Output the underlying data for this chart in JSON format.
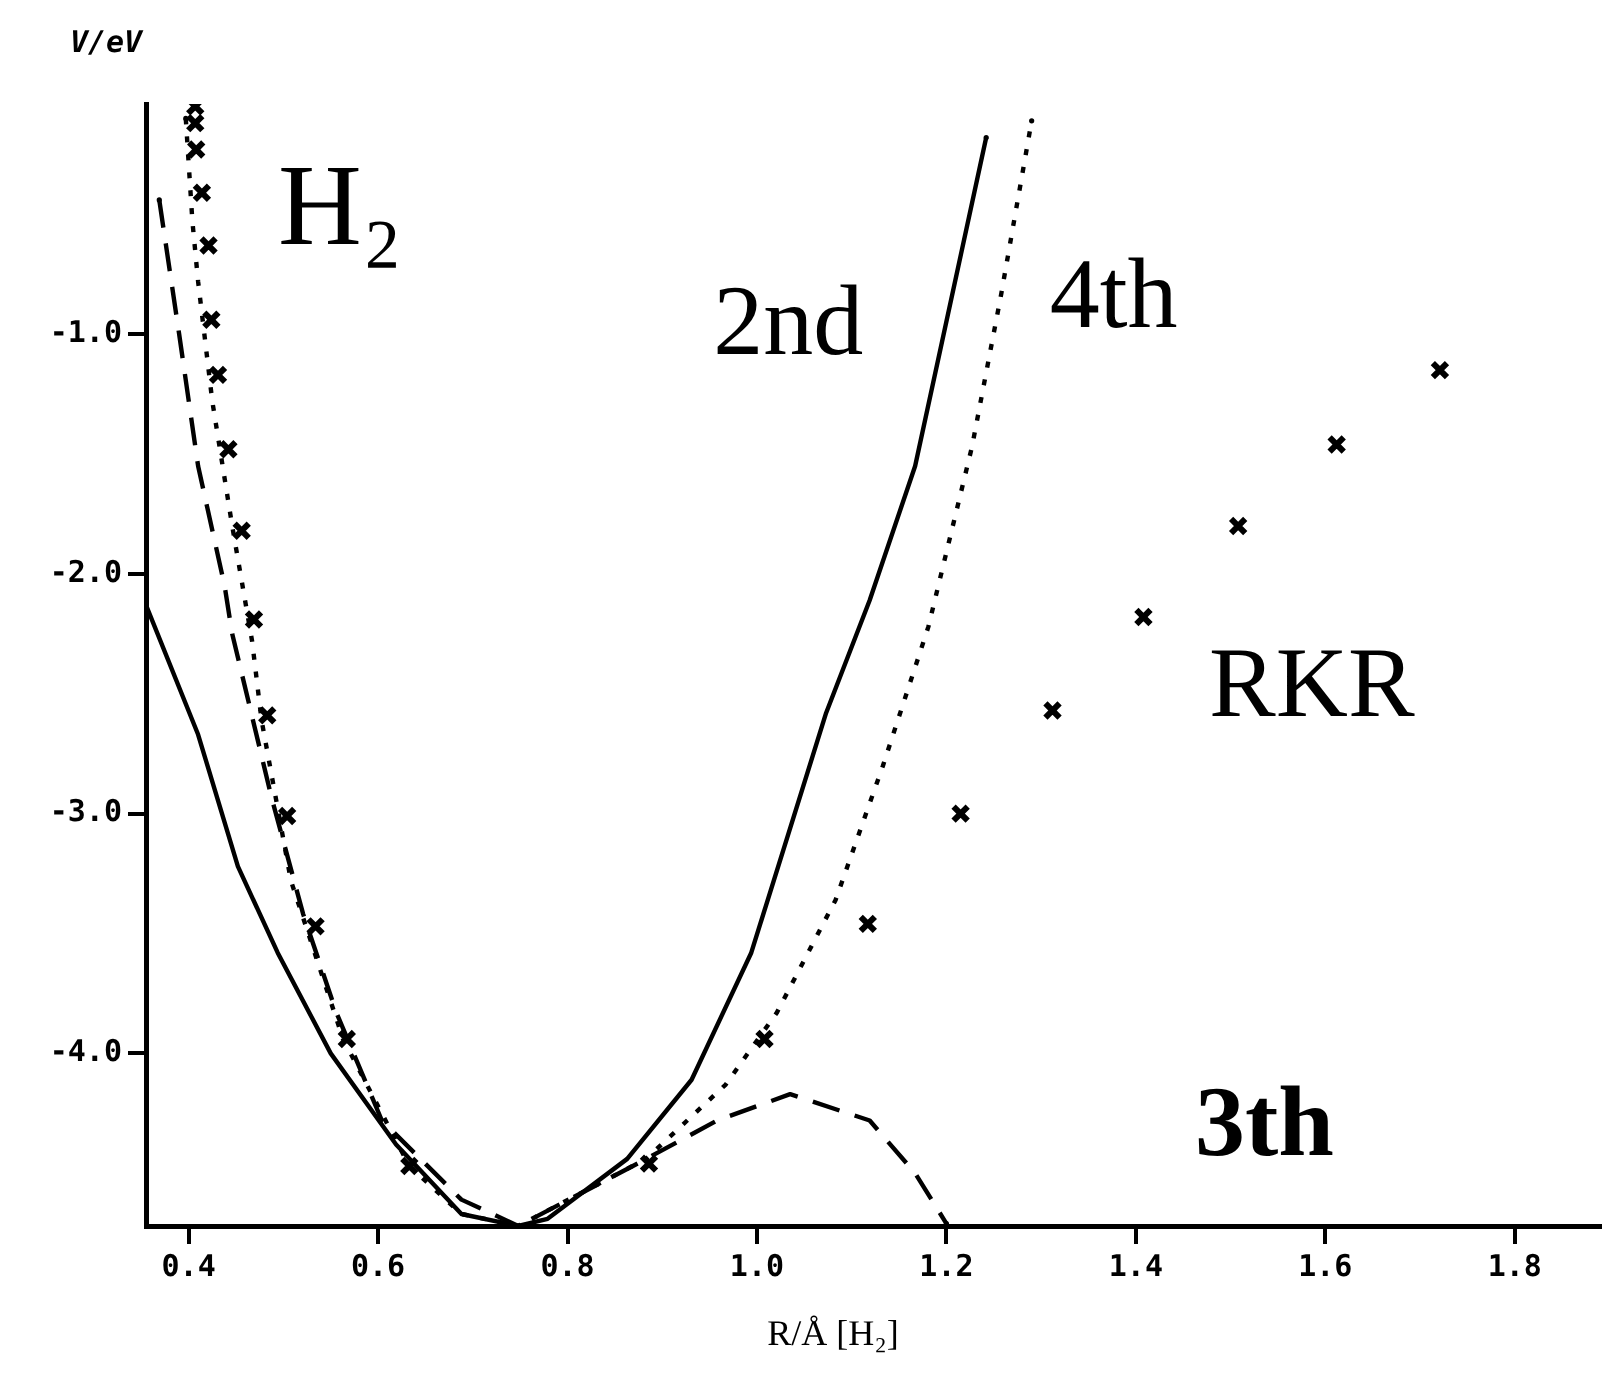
{
  "chart_data": {
    "type": "line",
    "xlabel": "R/Å [H₂]",
    "ylabel": "V/eV",
    "annotations": [
      "H₂"
    ],
    "xlim": [
      0.355,
      1.89
    ],
    "ylim": [
      -4.72,
      -0.04
    ],
    "xticks": [
      0.4,
      0.6,
      0.8,
      {
        "value": 1.0,
        "label": "1.0"
      },
      1.2,
      1.4,
      1.6,
      1.8
    ],
    "yticks": [
      {
        "value": -1,
        "label": "-1.0"
      },
      {
        "value": -2,
        "label": "-2.0"
      },
      {
        "value": -3,
        "label": "-3.0"
      },
      {
        "value": -4,
        "label": "-4.0"
      }
    ],
    "grid": false,
    "legend": false,
    "series": [
      {
        "name": "2nd",
        "type": "line",
        "color": "#000000",
        "line_style": "solid",
        "marker": "none",
        "x": [
          0.355,
          0.41,
          0.452,
          0.494,
          0.55,
          0.619,
          0.688,
          0.748,
          0.779,
          0.863,
          0.931,
          0.994,
          1.073,
          1.119,
          1.167,
          1.242
        ],
        "values": [
          -2.13,
          -2.67,
          -3.22,
          -3.58,
          -4.0,
          -4.38,
          -4.67,
          -4.72,
          -4.69,
          -4.44,
          -4.11,
          -3.58,
          -2.58,
          -2.11,
          -1.55,
          -0.18
        ]
      },
      {
        "name": "4th",
        "type": "line",
        "color": "#000000",
        "line_style": "dotted",
        "marker": "none",
        "x": [
          0.397,
          0.404,
          0.41,
          0.425,
          0.446,
          0.467,
          0.477,
          0.508,
          0.563,
          0.633,
          0.688,
          0.748,
          0.883,
          0.967,
          1.021,
          1.083,
          1.133,
          1.181,
          1.227,
          1.258,
          1.29
        ],
        "values": [
          -0.1,
          -0.53,
          -0.78,
          -1.28,
          -1.8,
          -2.28,
          -2.61,
          -3.28,
          -3.94,
          -4.47,
          -4.67,
          -4.72,
          -4.44,
          -4.13,
          -3.83,
          -3.36,
          -2.8,
          -2.22,
          -1.47,
          -0.83,
          -0.11
        ]
      },
      {
        "name": "3th",
        "type": "line",
        "color": "#000000",
        "line_style": "dashed",
        "marker": "none",
        "x": [
          0.369,
          0.39,
          0.41,
          0.438,
          0.446,
          0.488,
          0.521,
          0.556,
          0.604,
          0.688,
          0.748,
          0.869,
          0.958,
          1.035,
          1.119,
          1.167,
          1.2
        ],
        "values": [
          -0.44,
          -1.0,
          -1.55,
          -2.05,
          -2.25,
          -2.94,
          -3.42,
          -3.83,
          -4.28,
          -4.61,
          -4.72,
          -4.47,
          -4.28,
          -4.17,
          -4.28,
          -4.5,
          -4.71
        ]
      },
      {
        "name": "RKR",
        "type": "scatter",
        "color": "#000000",
        "marker": "cross",
        "x": [
          0.407,
          0.407,
          0.408,
          0.414,
          0.421,
          0.424,
          0.431,
          0.442,
          0.456,
          0.469,
          0.483,
          0.504,
          0.534,
          0.567,
          0.633,
          0.886,
          1.008,
          1.117,
          1.215,
          1.312,
          1.408,
          1.508,
          1.612,
          1.721
        ],
        "values": [
          -0.05,
          -0.12,
          -0.23,
          -0.41,
          -0.63,
          -0.94,
          -1.17,
          -1.48,
          -1.82,
          -2.19,
          -2.59,
          -3.01,
          -3.47,
          -3.94,
          -4.47,
          -4.46,
          -3.94,
          -3.46,
          -3.0,
          -2.57,
          -2.18,
          -1.8,
          -1.46,
          -1.15
        ]
      }
    ]
  }
}
